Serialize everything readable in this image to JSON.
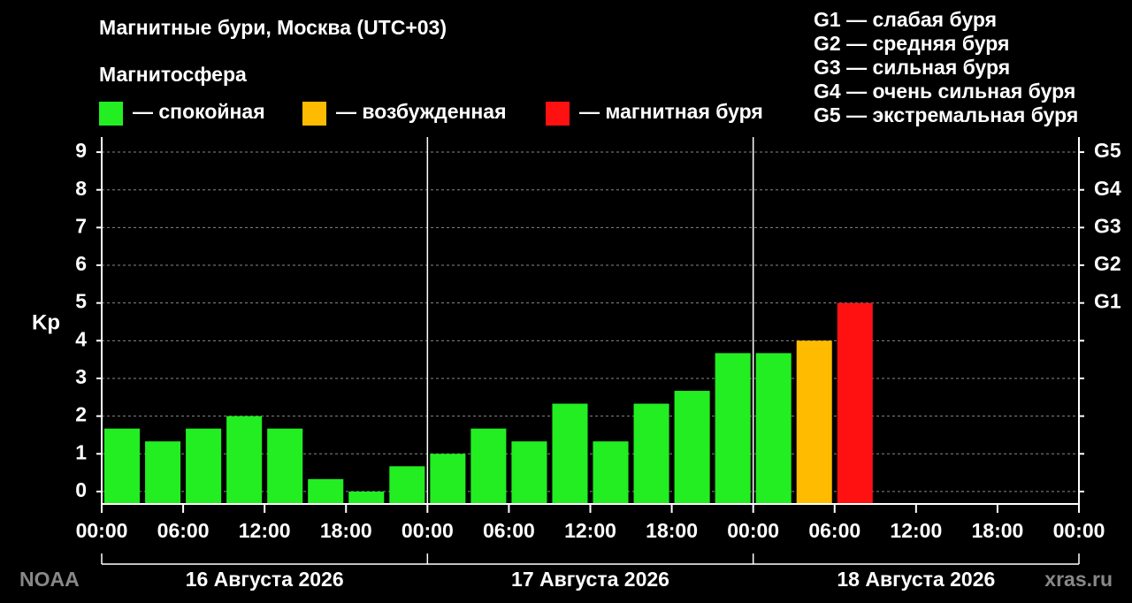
{
  "chart_data": {
    "type": "bar",
    "title": "Магнитные бури, Москва (UTC+03)",
    "subtitle": "Магнитосфера",
    "legend": [
      {
        "color": "#22ee22",
        "label": "— спокойная"
      },
      {
        "color": "#ffbb00",
        "label": "— возбужденная"
      },
      {
        "color": "#ff1111",
        "label": "— магнитная буря"
      }
    ],
    "g_scale": [
      "G1 — слабая буря",
      "G2 — средняя буря",
      "G3 — сильная буря",
      "G4 — очень сильная буря",
      "G5 — экстремальная буря"
    ],
    "y_label": "Kp",
    "x": [
      1.5,
      4.5,
      7.5,
      10.5,
      13.5,
      16.5,
      19.5,
      22.5,
      25.5,
      28.5,
      31.5,
      34.5,
      37.5,
      40.5,
      43.5,
      46.5,
      49.5,
      52.5,
      55.5
    ],
    "values": [
      1.67,
      1.33,
      1.67,
      2,
      1.67,
      0.33,
      0,
      0.67,
      1,
      1.67,
      1.33,
      2.33,
      1.33,
      2.33,
      2.67,
      3.67,
      3.67,
      4,
      5
    ],
    "colors": [
      "#22ee22",
      "#22ee22",
      "#22ee22",
      "#22ee22",
      "#22ee22",
      "#22ee22",
      "#22ee22",
      "#22ee22",
      "#22ee22",
      "#22ee22",
      "#22ee22",
      "#22ee22",
      "#22ee22",
      "#22ee22",
      "#22ee22",
      "#22ee22",
      "#22ee22",
      "#ffbb00",
      "#ff1111"
    ],
    "xlim": [
      0,
      72
    ],
    "xticks": [
      {
        "value": 0,
        "label": "00:00"
      },
      {
        "value": 6,
        "label": "06:00"
      },
      {
        "value": 12,
        "label": "12:00"
      },
      {
        "value": 18,
        "label": "18:00"
      },
      {
        "value": 24,
        "label": "00:00"
      },
      {
        "value": 30,
        "label": "06:00"
      },
      {
        "value": 36,
        "label": "12:00"
      },
      {
        "value": 42,
        "label": "18:00"
      },
      {
        "value": 48,
        "label": "00:00"
      },
      {
        "value": 54,
        "label": "06:00"
      },
      {
        "value": 60,
        "label": "12:00"
      },
      {
        "value": 66,
        "label": "18:00"
      },
      {
        "value": 72,
        "label": "00:00"
      }
    ],
    "days": [
      "16 Августа 2026",
      "17 Августа 2026",
      "18 Августа 2026"
    ],
    "ylim": [
      -0.33,
      9.4
    ],
    "yticks": [
      0,
      1,
      2,
      3,
      4,
      5,
      6,
      7,
      8,
      9
    ],
    "y2lim": [
      -0.33,
      9.4
    ],
    "y2ticks": [
      {
        "value": 5,
        "label": "G1"
      },
      {
        "value": 6,
        "label": "G2"
      },
      {
        "value": 7,
        "label": "G3"
      },
      {
        "value": 8,
        "label": "G4"
      },
      {
        "value": 9,
        "label": "G5"
      }
    ],
    "grid": true,
    "source": "NOAA",
    "site": "xras.ru"
  }
}
